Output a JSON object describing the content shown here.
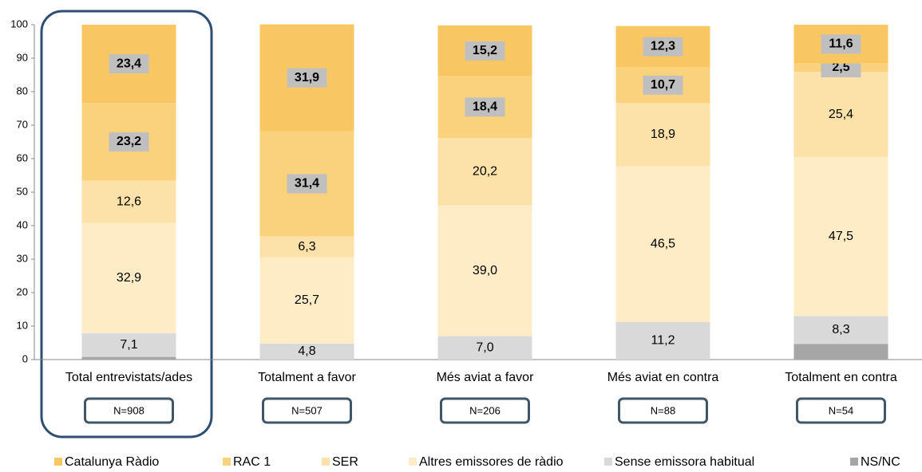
{
  "chart_data": {
    "type": "stacked_bar",
    "categories": [
      "Total entrevistats/ades",
      "Totalment a favor",
      "Més aviat a favor",
      "Més aviat en contra",
      "Totalment en contra"
    ],
    "n_labels": [
      "N=908",
      "N=507",
      "N=206",
      "N=88",
      "N=54"
    ],
    "series": [
      {
        "name": "NS/NC",
        "color": "#a6a6a6",
        "values": [
          0.8,
          0,
          0,
          0,
          4.7
        ]
      },
      {
        "name": "Sense emissora habitual",
        "color": "#d9d9d9",
        "values": [
          7.1,
          4.8,
          7.0,
          11.2,
          8.3
        ],
        "value_labels": [
          "7,1",
          "4,8",
          "7,0",
          "11,2",
          "8,3"
        ]
      },
      {
        "name": "Altres emissores de ràdio",
        "color": "#fdecc6",
        "values": [
          32.9,
          25.7,
          39.0,
          46.5,
          47.5
        ],
        "value_labels": [
          "32,9",
          "25,7",
          "39,0",
          "46,5",
          "47,5"
        ]
      },
      {
        "name": "SER",
        "color": "#fce2a8",
        "values": [
          12.6,
          6.3,
          20.2,
          18.9,
          25.4
        ],
        "value_labels": [
          "12,6",
          "6,3",
          "20,2",
          "18,9",
          "25,4"
        ]
      },
      {
        "name": "RAC 1",
        "color": "#fad27c",
        "values": [
          23.2,
          31.4,
          18.4,
          10.7,
          2.5
        ],
        "value_labels": [
          "23,2",
          "31,4",
          "18,4",
          "10,7",
          "2,5"
        ]
      },
      {
        "name": "Catalunya Ràdio",
        "color": "#f9c762",
        "values": [
          23.4,
          31.9,
          15.2,
          12.3,
          11.6
        ],
        "value_labels": [
          "23,4",
          "31,9",
          "15,2",
          "12,3",
          "11,6"
        ]
      }
    ],
    "legend_order": [
      5,
      4,
      3,
      2,
      1,
      0
    ],
    "ylim": [
      0,
      100
    ],
    "yticks": [
      0,
      10,
      20,
      30,
      40,
      50,
      60,
      70,
      80,
      90,
      100
    ]
  }
}
